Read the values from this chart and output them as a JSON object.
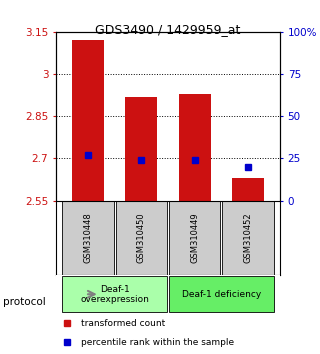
{
  "title": "GDS3490 / 1429959_at",
  "samples": [
    "GSM310448",
    "GSM310450",
    "GSM310449",
    "GSM310452"
  ],
  "bar_values": [
    3.12,
    2.92,
    2.93,
    2.63
  ],
  "percentile_pct": [
    27,
    24,
    24,
    20
  ],
  "ylim_left": [
    2.55,
    3.15
  ],
  "ylim_right": [
    0,
    100
  ],
  "yticks_left": [
    2.55,
    2.7,
    2.85,
    3.0,
    3.15
  ],
  "ytick_labels_left": [
    "2.55",
    "2.7",
    "2.85",
    "3",
    "3.15"
  ],
  "yticks_right": [
    0,
    25,
    50,
    75,
    100
  ],
  "ytick_labels_right": [
    "0",
    "25",
    "50",
    "75",
    "100%"
  ],
  "bar_color": "#cc1111",
  "percentile_color": "#0000cc",
  "grid_color": "#888888",
  "bar_bottom": 2.55,
  "group_info": [
    {
      "indices": [
        0,
        1
      ],
      "label": "Deaf-1\noverexpression",
      "color": "#aaffaa"
    },
    {
      "indices": [
        2,
        3
      ],
      "label": "Deaf-1 deficiency",
      "color": "#66ee66"
    }
  ],
  "legend_items": [
    {
      "color": "#cc1111",
      "label": "transformed count"
    },
    {
      "color": "#0000cc",
      "label": "percentile rank within the sample"
    }
  ],
  "protocol_label": "protocol",
  "bar_width": 0.6,
  "sample_box_color": "#cccccc"
}
